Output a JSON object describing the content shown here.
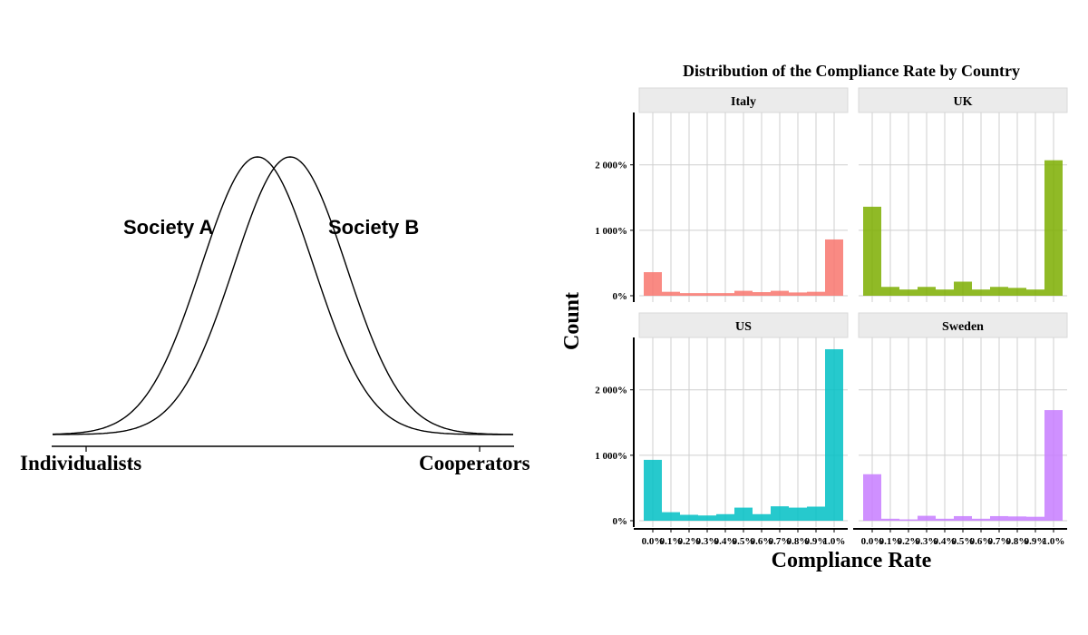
{
  "left_diagram": {
    "curve_a_label": "Society A",
    "curve_b_label": "Society B",
    "axis_left_label": "Individualists",
    "axis_right_label": "Cooperators"
  },
  "chart_data": {
    "type": "bar",
    "title": "Distribution of the Compliance Rate by Country",
    "xlabel": "Compliance Rate",
    "ylabel": "Count",
    "ylim": [
      0,
      2800
    ],
    "y_ticks": [
      0,
      1000,
      2000
    ],
    "y_tick_labels": [
      "0%",
      "1 000%",
      "2 000%"
    ],
    "x_tick_labels": [
      "0.0%",
      "0.1%",
      "0.2%",
      "0.3%",
      "0.4%",
      "0.5%",
      "0.6%",
      "0.7%",
      "0.8%",
      "0.9%",
      "1.0%"
    ],
    "grid": true,
    "panels": [
      {
        "name": "Italy",
        "color": "#F8766D",
        "values": [
          360,
          60,
          40,
          40,
          40,
          75,
          55,
          75,
          50,
          60,
          860
        ]
      },
      {
        "name": "UK",
        "color": "#7CAE00",
        "values": [
          1360,
          135,
          95,
          135,
          95,
          215,
          95,
          135,
          120,
          95,
          2070
        ]
      },
      {
        "name": "US",
        "color": "#00BFC4",
        "values": [
          930,
          130,
          90,
          80,
          100,
          200,
          100,
          220,
          200,
          215,
          2620
        ]
      },
      {
        "name": "Sweden",
        "color": "#C77CFF",
        "values": [
          710,
          30,
          20,
          75,
          30,
          70,
          30,
          70,
          65,
          60,
          1690
        ]
      }
    ]
  }
}
